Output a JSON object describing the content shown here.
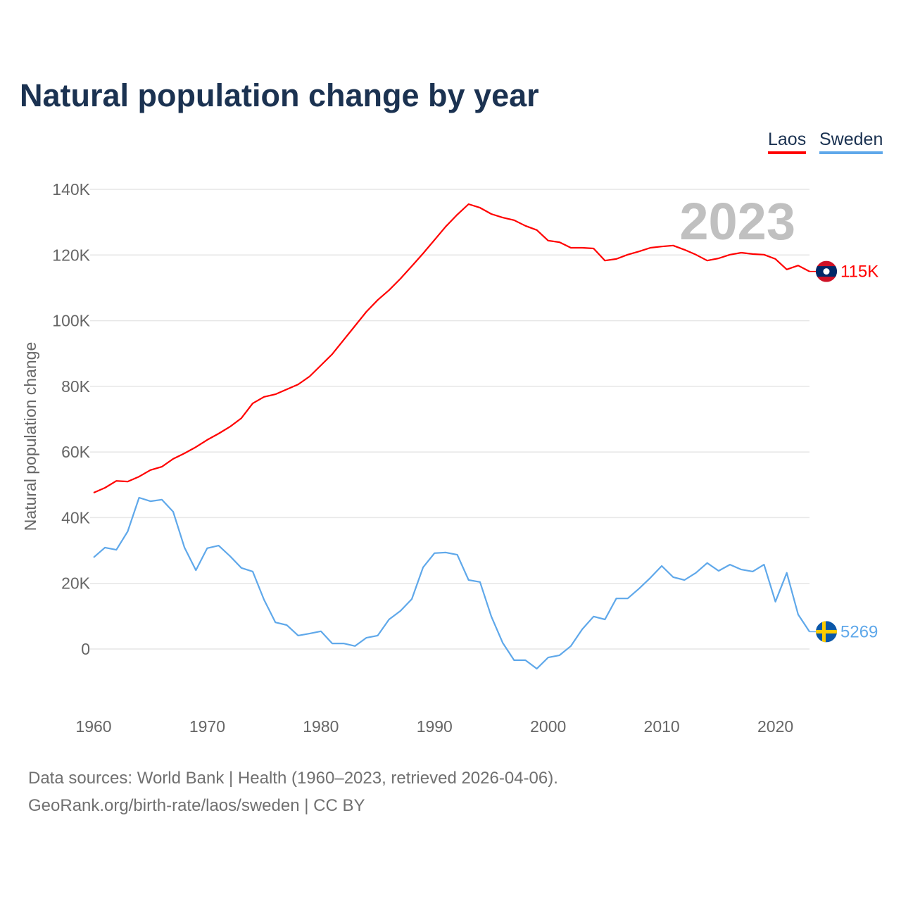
{
  "title": "Natural population change by year",
  "legend": [
    "Laos",
    "Sweden"
  ],
  "footer": {
    "line1": "Data sources: World Bank | Health (1960–2023, retrieved 2026-04-06).",
    "line2": "GeoRank.org/birth-rate/laos/sweden | CC BY"
  },
  "chart_data": {
    "type": "line",
    "title": "Natural population change by year",
    "xlabel": "",
    "ylabel": "Natural population change",
    "year_label": "2023",
    "xlim": [
      1960,
      2023
    ],
    "ylim": [
      -20000,
      140000
    ],
    "grid": true,
    "legend_position": "top-right",
    "x_ticks": [
      1960,
      1970,
      1980,
      1990,
      2000,
      2010,
      2020
    ],
    "x_tick_labels": [
      "1960",
      "1970",
      "1980",
      "1990",
      "2000",
      "2010",
      "2020"
    ],
    "y_ticks": [
      0,
      20000,
      40000,
      60000,
      80000,
      100000,
      120000,
      140000
    ],
    "y_tick_labels": [
      "0",
      "20K",
      "40K",
      "60K",
      "80K",
      "100K",
      "120K",
      "140K"
    ],
    "x_start": 1960,
    "series": [
      {
        "name": "Laos",
        "color": "#ff0000",
        "end_label": "115K",
        "flag": "laos-flag",
        "values": [
          47600,
          49100,
          51200,
          51000,
          52500,
          54500,
          55500,
          57900,
          59600,
          61500,
          63700,
          65600,
          67700,
          70300,
          74800,
          76800,
          77600,
          79100,
          80600,
          83000,
          86400,
          89800,
          94100,
          98400,
          102700,
          106300,
          109300,
          112800,
          116600,
          120500,
          124600,
          128700,
          132300,
          135500,
          134400,
          132500,
          131400,
          130600,
          128900,
          127600,
          124400,
          123900,
          122200,
          122200,
          122000,
          118300,
          118800,
          120100,
          121100,
          122200,
          122600,
          122900,
          121600,
          120100,
          118300,
          119000,
          120100,
          120700,
          120300,
          120100,
          118800,
          115600,
          116800,
          115000
        ]
      },
      {
        "name": "Sweden",
        "color": "#5fa8ea",
        "end_label": "5269",
        "flag": "sweden-flag",
        "values": [
          27900,
          30900,
          30200,
          35800,
          46100,
          45000,
          45500,
          41800,
          30900,
          24000,
          30700,
          31500,
          28300,
          24700,
          23600,
          15000,
          8100,
          7300,
          4100,
          4700,
          5400,
          1700,
          1700,
          900,
          3400,
          4100,
          9000,
          11600,
          15200,
          24900,
          29200,
          29400,
          28700,
          21000,
          20400,
          9900,
          1900,
          -3400,
          -3400,
          -6000,
          -2600,
          -1900,
          900,
          6000,
          9900,
          9000,
          15400,
          15400,
          18400,
          21700,
          25300,
          21900,
          21000,
          23200,
          26200,
          23800,
          25700,
          24200,
          23600,
          25700,
          14400,
          23200,
          10500,
          5269
        ]
      }
    ]
  }
}
